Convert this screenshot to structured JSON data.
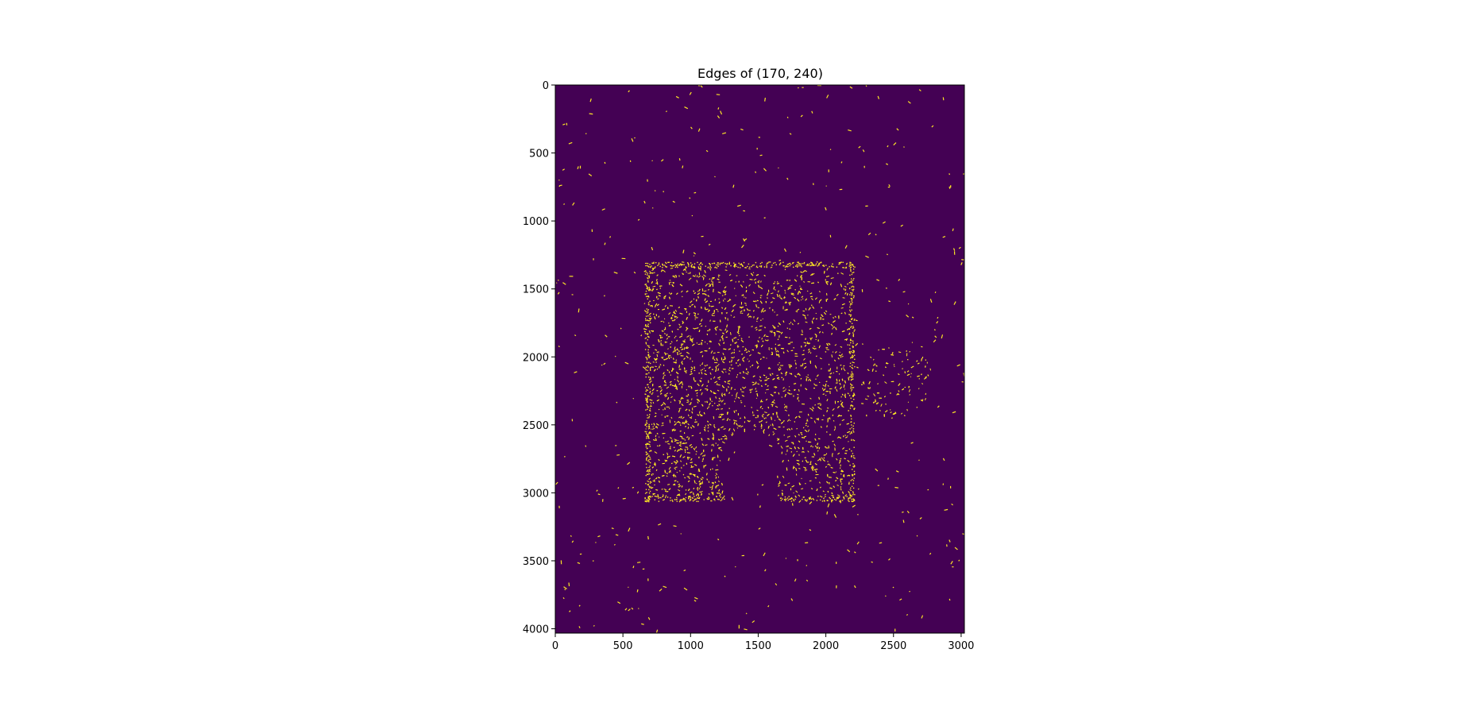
{
  "chart_data": {
    "type": "heatmap",
    "title": "Edges of (170, 240)",
    "xlabel": "",
    "ylabel": "",
    "xlim": [
      0,
      3024
    ],
    "ylim": [
      4032,
      0
    ],
    "x_ticks": [
      0,
      500,
      1000,
      1500,
      2000,
      2500,
      3000
    ],
    "y_ticks": [
      0,
      500,
      1000,
      1500,
      2000,
      2500,
      3000,
      3500,
      4000
    ],
    "grid": false,
    "colormap": "viridis",
    "colors": {
      "background": "#440154",
      "edge": "#fde725"
    },
    "values": "binary edge map (0 = background, 1 = edge)",
    "regions": {
      "piece_body": {
        "x": [
          660,
          2210
        ],
        "y": [
          1300,
          3060
        ]
      },
      "tab_right": {
        "cx": 2520,
        "cy": 2170,
        "rx": 270,
        "ry": 270
      },
      "notch_bottom": {
        "cx": 1450,
        "cy": 2760,
        "r": 230,
        "y_to": 3060
      }
    }
  }
}
